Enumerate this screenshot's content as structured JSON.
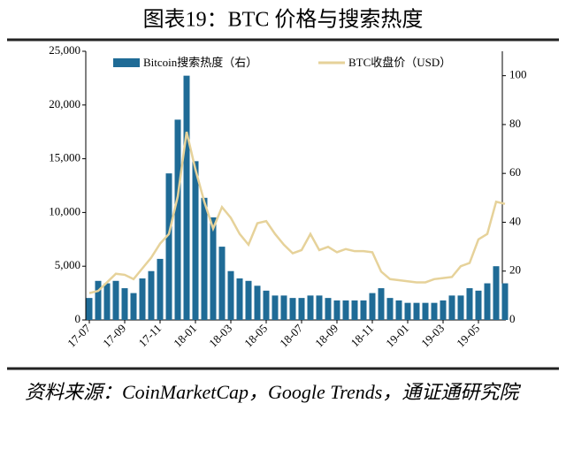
{
  "chart_data": {
    "type": "bar_line",
    "title": "图表19：BTC 价格与搜索热度",
    "source": "资料来源：CoinMarketCap，Google Trends，通证通研究院",
    "categories": [
      "17-07",
      null,
      null,
      null,
      "17-09",
      null,
      null,
      null,
      "17-11",
      null,
      null,
      null,
      "18-01",
      null,
      null,
      null,
      "18-03",
      null,
      null,
      null,
      "18-05",
      null,
      null,
      null,
      "18-07",
      null,
      null,
      null,
      "18-09",
      null,
      null,
      null,
      "18-11",
      null,
      null,
      null,
      "19-01",
      null,
      null,
      null,
      "19-03",
      null,
      null,
      null,
      "19-05",
      null,
      null,
      null
    ],
    "series": [
      {
        "name": "Bitcoin搜索热度（右）",
        "type": "bar",
        "axis": "y2",
        "color": "#1f6b96",
        "values": [
          9,
          16,
          15,
          16,
          13,
          11,
          17,
          20,
          25,
          60,
          82,
          100,
          65,
          50,
          42,
          30,
          20,
          17,
          16,
          14,
          12,
          10,
          10,
          9,
          9,
          10,
          10,
          9,
          8,
          8,
          8,
          8,
          11,
          13,
          9,
          8,
          7,
          7,
          7,
          7,
          8,
          10,
          10,
          13,
          12,
          15,
          22,
          15
        ]
      },
      {
        "name": "BTC收盘价（USD）",
        "type": "line",
        "axis": "y",
        "color": "#e6d29a",
        "values": [
          2500,
          2700,
          3500,
          4300,
          4200,
          3800,
          4800,
          5800,
          7100,
          8000,
          11500,
          17500,
          14000,
          11000,
          8500,
          10500,
          9500,
          8000,
          7000,
          9000,
          9200,
          8000,
          7000,
          6200,
          6500,
          8000,
          6500,
          6800,
          6300,
          6600,
          6400,
          6400,
          6300,
          4500,
          3800,
          3700,
          3600,
          3500,
          3500,
          3800,
          3900,
          4000,
          5000,
          5300,
          7500,
          8000,
          11000,
          10800
        ]
      }
    ],
    "ylim": [
      0,
      25000
    ],
    "yticks": [
      0,
      {
        "value": 5000,
        "label": "5,000"
      },
      {
        "value": 10000,
        "label": "10,000"
      },
      {
        "value": 15000,
        "label": "15,000"
      },
      {
        "value": 20000,
        "label": "20,000"
      },
      {
        "value": 25000,
        "label": "25,000"
      }
    ],
    "y2lim": [
      0,
      110
    ],
    "y2ticks": [
      0,
      20,
      40,
      60,
      80,
      100
    ],
    "legend": "top"
  }
}
